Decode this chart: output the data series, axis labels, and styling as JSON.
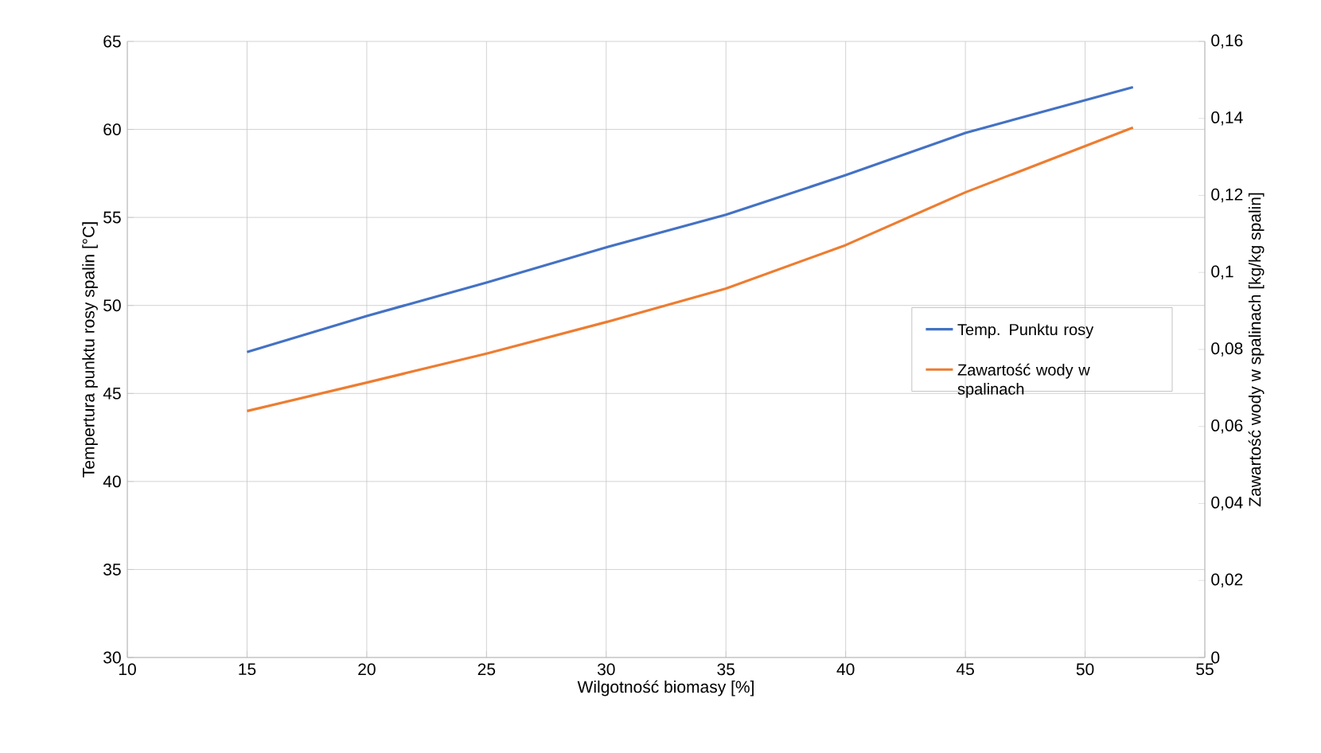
{
  "chart_data": {
    "type": "line",
    "xlabel": "Wilgotność biomasy [%]",
    "ylabel": "Tempertura punktu rosy spalin [°C]",
    "y2label": "Zawartość wody w spalinach [kg/kg spalin]",
    "xlim": [
      10,
      55
    ],
    "xticks": [
      10,
      15,
      20,
      25,
      30,
      35,
      40,
      45,
      50,
      55
    ],
    "ylim": [
      30,
      65
    ],
    "yticks": [
      30,
      35,
      40,
      45,
      50,
      55,
      60,
      65
    ],
    "y2lim": [
      0,
      0.16
    ],
    "y2ticks": [
      {
        "value": 0,
        "label": "0"
      },
      {
        "value": 0.02,
        "label": "0,02"
      },
      {
        "value": 0.04,
        "label": "0,04"
      },
      {
        "value": 0.06,
        "label": "0,06"
      },
      {
        "value": 0.08,
        "label": "0,08"
      },
      {
        "value": 0.1,
        "label": "0,1"
      },
      {
        "value": 0.12,
        "label": "0,12"
      },
      {
        "value": 0.14,
        "label": "0,14"
      },
      {
        "value": 0.16,
        "label": "0,16"
      }
    ],
    "x": [
      15,
      20,
      25,
      30,
      35,
      40,
      45,
      52
    ],
    "series": [
      {
        "name": "Temp. Punktu rosy",
        "color": "#4472c4",
        "values": [
          47.35,
          49.4,
          51.3,
          53.3,
          55.15,
          57.4,
          59.8,
          62.4
        ]
      },
      {
        "name": "Zawartość wody w spalinach",
        "color": "#ed7d31",
        "axis": "y2",
        "values": [
          0.064,
          0.0714,
          0.0789,
          0.0871,
          0.0958,
          0.1071,
          0.1208,
          0.1376
        ]
      }
    ],
    "grid": true,
    "legend": "right",
    "marker": "none",
    "line_style": "solid"
  }
}
